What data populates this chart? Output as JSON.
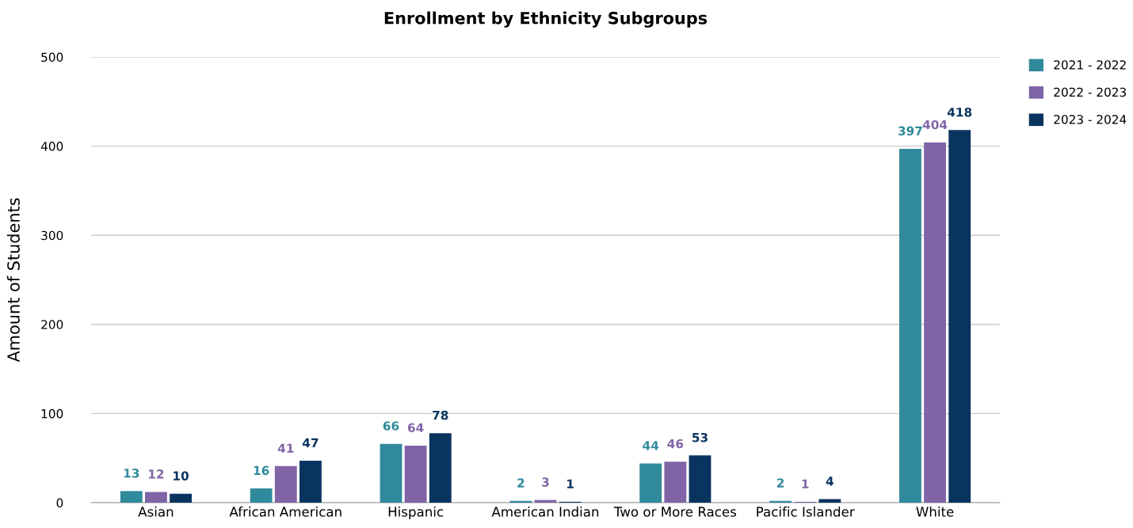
{
  "chart_data": {
    "type": "bar",
    "title": "Enrollment by Ethnicity Subgroups",
    "ylabel": "Amount of Students",
    "categories": [
      "Asian",
      "African American",
      "Hispanic",
      "American Indian",
      "Two or More Races",
      "Pacific Islander",
      "White"
    ],
    "series": [
      {
        "name": "2021 - 2022",
        "color": "#308a9b",
        "values": [
          13,
          16,
          66,
          2,
          44,
          2,
          397
        ]
      },
      {
        "name": "2022 - 2023",
        "color": "#8064a6",
        "values": [
          12,
          41,
          64,
          3,
          46,
          1,
          404
        ]
      },
      {
        "name": "2023 - 2024",
        "color": "#0a3460",
        "values": [
          10,
          47,
          78,
          1,
          53,
          4,
          418
        ]
      }
    ],
    "ylim": [
      0,
      500
    ],
    "yticks": [
      0,
      100,
      200,
      300,
      400,
      500
    ],
    "grid": "y",
    "legend": "top right",
    "data_labels": true
  }
}
